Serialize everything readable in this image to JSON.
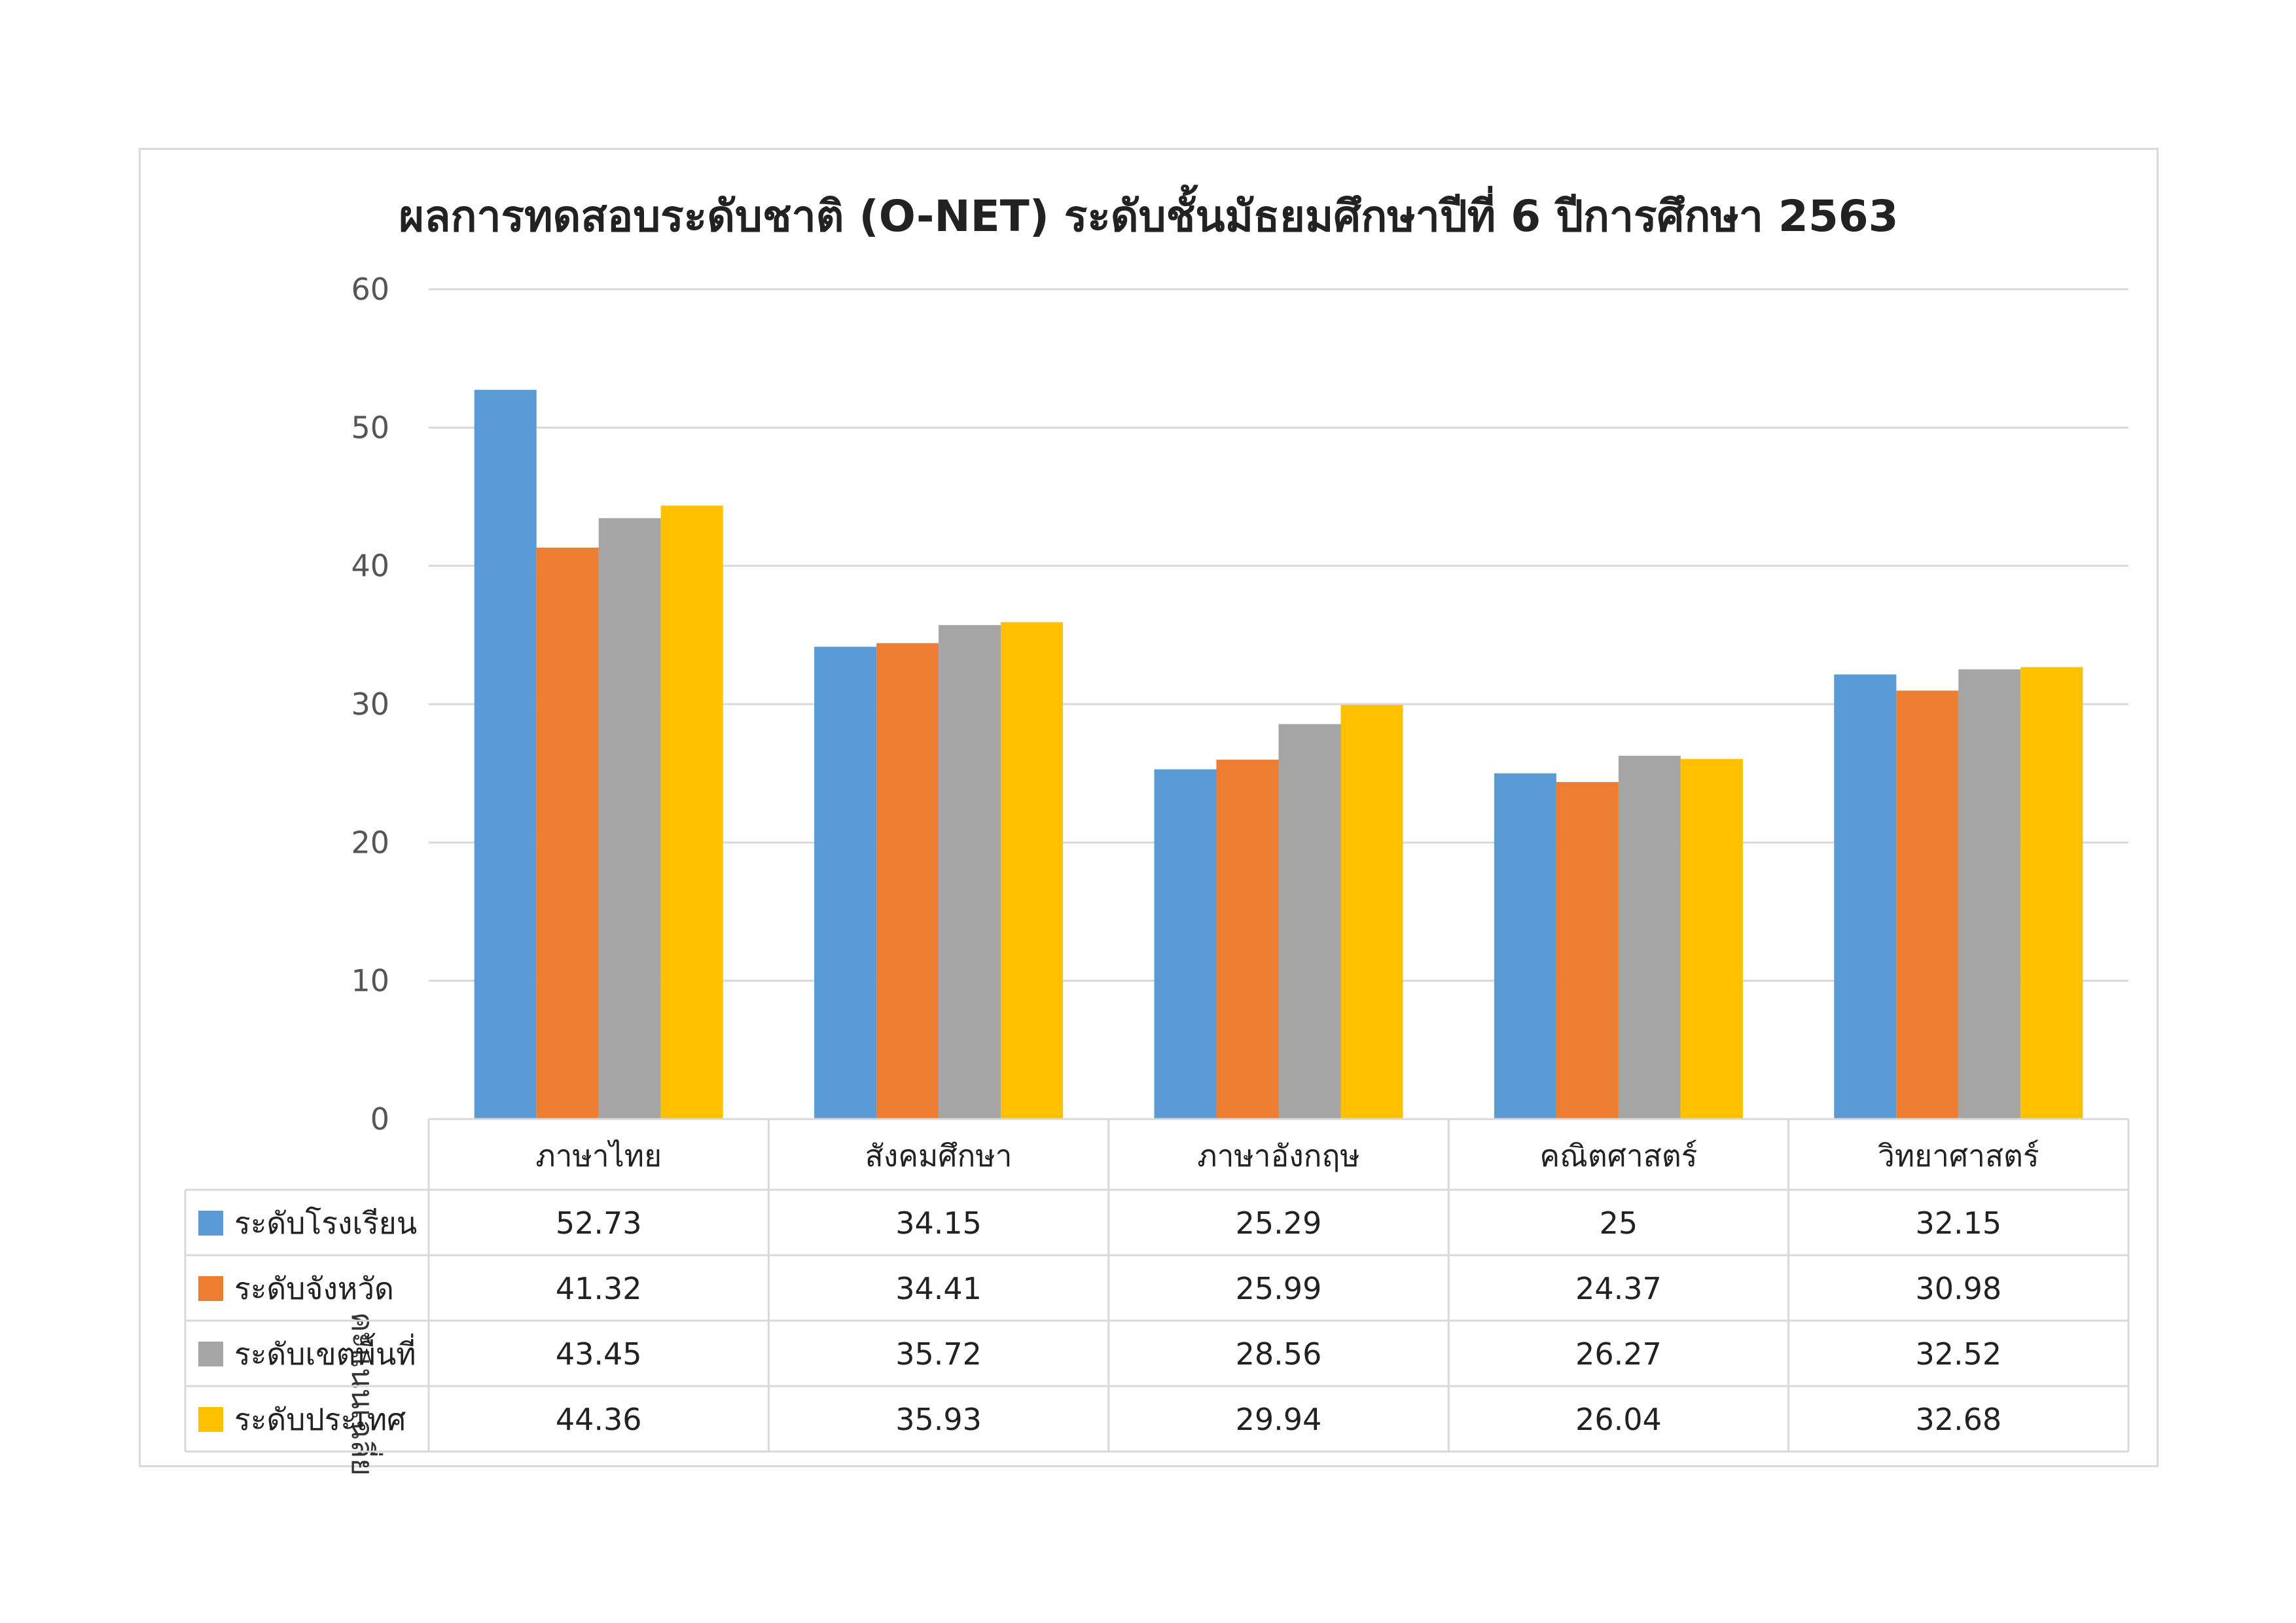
{
  "chart_data": {
    "type": "bar",
    "title": "ผลการทดสอบระดับชาติ (O-NET) ระดับชั้นมัธยมศึกษาปีที่ 6 ปีการศึกษา 2563",
    "ylabel": "คะแนนเฉลี่ย",
    "xlabel": "",
    "ylim": [
      0,
      60
    ],
    "yticks": [
      0,
      10,
      20,
      30,
      40,
      50,
      60
    ],
    "grid": true,
    "legend": "data-table-left",
    "categories": [
      "ภาษาไทย",
      "สังคมศึกษา",
      "ภาษาอังกฤษ",
      "คณิตศาสตร์",
      "วิทยาศาสตร์"
    ],
    "series": [
      {
        "name": "ระดับโรงเรียน",
        "color": "#5b9bd5",
        "values": [
          52.73,
          34.15,
          25.29,
          25,
          32.15
        ]
      },
      {
        "name": "ระดับจังหวัด",
        "color": "#ed7d31",
        "values": [
          41.32,
          34.41,
          25.99,
          24.37,
          30.98
        ]
      },
      {
        "name": "ระดับเขตพื้นที่",
        "color": "#a5a5a5",
        "values": [
          43.45,
          35.72,
          28.56,
          26.27,
          32.52
        ]
      },
      {
        "name": "ระดับประเทศ",
        "color": "#ffc000",
        "values": [
          44.36,
          35.93,
          29.94,
          26.04,
          32.68
        ]
      }
    ]
  }
}
